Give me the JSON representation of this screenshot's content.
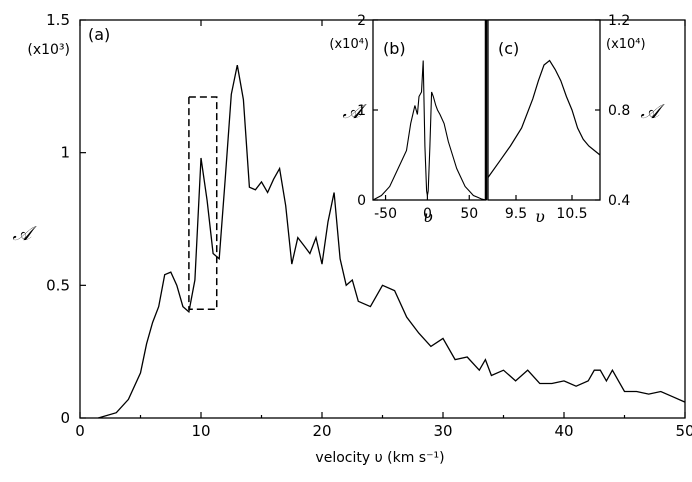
{
  "chart_data": [
    {
      "panel": "(a)",
      "type": "line",
      "xlabel": "velocity  υ (km s⁻¹)",
      "ylabel": "𝒜",
      "yscale": "(x10³)",
      "xlim": [
        0,
        50
      ],
      "ylim": [
        0,
        1.5
      ],
      "xticks": [
        "0",
        "10",
        "20",
        "30",
        "40",
        "50"
      ],
      "yticks": [
        "0",
        "0.5",
        "1",
        "1.5"
      ],
      "highlight_box": {
        "x": [
          9,
          11.3
        ],
        "y": [
          0.41,
          1.21
        ]
      },
      "x": [
        1.5,
        3,
        4,
        5,
        5.5,
        6,
        6.5,
        7,
        7.5,
        8,
        8.5,
        9,
        9.5,
        10,
        10.5,
        11,
        11.5,
        12,
        12.5,
        13,
        13.5,
        14,
        14.5,
        15,
        15.5,
        16,
        16.5,
        17,
        17.5,
        18,
        18.5,
        19,
        19.5,
        20,
        20.5,
        21,
        21.5,
        22,
        22.5,
        23,
        24,
        25,
        26,
        27,
        28,
        29,
        30,
        31,
        32,
        33,
        33.5,
        34,
        35,
        36,
        37,
        38,
        39,
        40,
        41,
        42,
        42.5,
        43,
        43.5,
        44,
        45,
        46,
        47,
        48,
        49,
        50
      ],
      "y": [
        0,
        0.02,
        0.07,
        0.17,
        0.28,
        0.36,
        0.42,
        0.54,
        0.55,
        0.5,
        0.42,
        0.4,
        0.52,
        0.98,
        0.82,
        0.62,
        0.6,
        0.9,
        1.22,
        1.33,
        1.2,
        0.87,
        0.86,
        0.89,
        0.85,
        0.9,
        0.94,
        0.8,
        0.58,
        0.68,
        0.65,
        0.62,
        0.68,
        0.58,
        0.74,
        0.85,
        0.6,
        0.5,
        0.52,
        0.44,
        0.42,
        0.5,
        0.48,
        0.38,
        0.32,
        0.27,
        0.3,
        0.22,
        0.23,
        0.18,
        0.22,
        0.16,
        0.18,
        0.14,
        0.18,
        0.13,
        0.13,
        0.14,
        0.12,
        0.14,
        0.18,
        0.18,
        0.14,
        0.18,
        0.1,
        0.1,
        0.09,
        0.1,
        0.08,
        0.06
      ]
    },
    {
      "panel": "(b)",
      "type": "line",
      "xlabel": "υ",
      "yscale": "(x10⁴)",
      "xlim": [
        -65,
        70
      ],
      "ylim": [
        0,
        2
      ],
      "xticks": [
        "-50",
        "0",
        "50"
      ],
      "yticks": [
        "0",
        "1",
        "2"
      ],
      "x": [
        -65,
        -55,
        -50,
        -45,
        -40,
        -35,
        -30,
        -25,
        -20,
        -15,
        -12,
        -10,
        -7,
        -5,
        -3,
        -1,
        0,
        1,
        3,
        5,
        7,
        10,
        12,
        15,
        20,
        25,
        30,
        35,
        40,
        45,
        50,
        55,
        60,
        65,
        70
      ],
      "y": [
        0,
        0.05,
        0.1,
        0.15,
        0.25,
        0.35,
        0.45,
        0.55,
        0.85,
        1.05,
        0.95,
        1.15,
        1.2,
        1.55,
        0.6,
        0.1,
        0.05,
        0.1,
        0.6,
        1.2,
        1.15,
        1.05,
        1.0,
        0.95,
        0.85,
        0.65,
        0.5,
        0.35,
        0.25,
        0.15,
        0.1,
        0.05,
        0.03,
        0.01,
        0.0
      ]
    },
    {
      "panel": "(c)",
      "type": "line",
      "xlabel": "υ",
      "ylabel": "𝒜",
      "yscale": "(x10⁴)",
      "xlim": [
        9.0,
        11.0
      ],
      "ylim": [
        0.4,
        1.2
      ],
      "xticks": [
        "9.5",
        "10.5"
      ],
      "yticks": [
        "0.4",
        "0.8",
        "1.2"
      ],
      "x": [
        9.0,
        9.2,
        9.4,
        9.6,
        9.8,
        9.9,
        10.0,
        10.1,
        10.2,
        10.3,
        10.4,
        10.5,
        10.6,
        10.7,
        10.8,
        10.9,
        11.0
      ],
      "y": [
        0.5,
        0.57,
        0.64,
        0.72,
        0.85,
        0.93,
        1.0,
        1.02,
        0.98,
        0.93,
        0.86,
        0.8,
        0.72,
        0.67,
        0.64,
        0.62,
        0.6
      ]
    }
  ]
}
